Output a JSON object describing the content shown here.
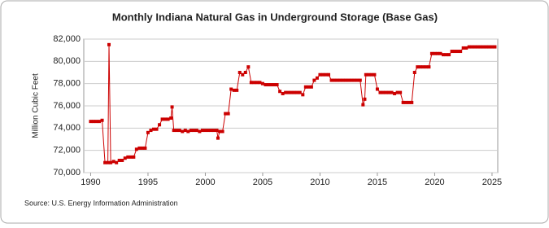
{
  "chart_data": {
    "type": "line",
    "title": "Monthly Indiana Natural Gas in Underground Storage (Base Gas)",
    "y_label": "Million Cubic Feet",
    "source": "Source: U.S. Energy Information Administration",
    "x": [
      1990.0,
      1990.25,
      1990.5,
      1990.75,
      1991.0,
      1991.25,
      1991.5,
      1991.6,
      1991.75,
      1992.0,
      1992.25,
      1992.5,
      1992.75,
      1993.0,
      1993.25,
      1993.5,
      1993.75,
      1994.0,
      1994.25,
      1994.5,
      1994.75,
      1995.0,
      1995.25,
      1995.5,
      1995.75,
      1996.0,
      1996.25,
      1996.5,
      1996.75,
      1997.0,
      1997.1,
      1997.25,
      1997.5,
      1997.75,
      1998.0,
      1998.25,
      1998.5,
      1998.75,
      1999.0,
      1999.25,
      1999.5,
      1999.75,
      2000.0,
      2000.25,
      2000.5,
      2000.75,
      2001.0,
      2001.1,
      2001.25,
      2001.5,
      2001.75,
      2002.0,
      2002.25,
      2002.5,
      2002.75,
      2003.0,
      2003.25,
      2003.5,
      2003.75,
      2004.0,
      2004.25,
      2004.5,
      2004.75,
      2005.0,
      2005.25,
      2005.5,
      2005.75,
      2006.0,
      2006.25,
      2006.5,
      2006.75,
      2007.0,
      2007.25,
      2007.5,
      2007.75,
      2008.0,
      2008.25,
      2008.5,
      2008.75,
      2009.0,
      2009.25,
      2009.5,
      2009.75,
      2010.0,
      2010.25,
      2010.5,
      2010.75,
      2011.0,
      2011.25,
      2011.5,
      2011.75,
      2012.0,
      2012.25,
      2012.5,
      2012.75,
      2013.0,
      2013.25,
      2013.5,
      2013.75,
      2013.9,
      2014.0,
      2014.25,
      2014.5,
      2014.75,
      2015.0,
      2015.25,
      2015.5,
      2015.75,
      2016.0,
      2016.25,
      2016.5,
      2016.75,
      2017.0,
      2017.25,
      2017.5,
      2017.75,
      2018.0,
      2018.25,
      2018.5,
      2018.75,
      2019.0,
      2019.25,
      2019.5,
      2019.75,
      2020.0,
      2020.25,
      2020.5,
      2020.75,
      2021.0,
      2021.25,
      2021.5,
      2021.75,
      2022.0,
      2022.25,
      2022.5,
      2022.75,
      2023.0,
      2023.25,
      2023.5,
      2023.75,
      2024.0,
      2024.25,
      2024.5,
      2024.75,
      2025.0,
      2025.25
    ],
    "series": [
      {
        "name": "Base Gas",
        "color": "#cc0000",
        "values": [
          74600,
          74600,
          74600,
          74600,
          74700,
          70900,
          70900,
          81500,
          70900,
          71000,
          70900,
          71100,
          71100,
          71300,
          71400,
          71400,
          71400,
          72100,
          72200,
          72200,
          72200,
          73600,
          73800,
          73900,
          73900,
          74300,
          74800,
          74800,
          74800,
          74900,
          75900,
          73800,
          73800,
          73800,
          73700,
          73800,
          73700,
          73800,
          73800,
          73800,
          73700,
          73800,
          73800,
          73800,
          73800,
          73800,
          73800,
          73100,
          73700,
          73700,
          75300,
          75300,
          77500,
          77400,
          77400,
          79000,
          78800,
          79000,
          79500,
          78100,
          78100,
          78100,
          78100,
          78000,
          77900,
          77900,
          77900,
          77900,
          77900,
          77300,
          77100,
          77200,
          77200,
          77200,
          77200,
          77200,
          77200,
          77000,
          77700,
          77700,
          77700,
          78300,
          78500,
          78800,
          78800,
          78800,
          78800,
          78300,
          78300,
          78300,
          78300,
          78300,
          78300,
          78300,
          78300,
          78300,
          78300,
          78300,
          76100,
          76600,
          78800,
          78800,
          78800,
          78800,
          77500,
          77200,
          77200,
          77200,
          77200,
          77200,
          77100,
          77200,
          77200,
          76300,
          76300,
          76300,
          76300,
          79000,
          79500,
          79500,
          79500,
          79500,
          79500,
          80700,
          80700,
          80700,
          80700,
          80600,
          80600,
          80600,
          80900,
          80900,
          80900,
          80900,
          81200,
          81200,
          81300,
          81300,
          81300,
          81300,
          81300,
          81300,
          81300,
          81300,
          81300,
          81300
        ]
      }
    ],
    "xlim": [
      1989.4,
      2025.5
    ],
    "xticks": [
      1990,
      1995,
      2000,
      2005,
      2010,
      2015,
      2020,
      2025
    ],
    "ylim": [
      70000,
      82000
    ],
    "yticks": [
      {
        "value": 70000,
        "label": "70,000"
      },
      {
        "value": 72000,
        "label": "72,000"
      },
      {
        "value": 74000,
        "label": "74,000"
      },
      {
        "value": 76000,
        "label": "76,000"
      },
      {
        "value": 78000,
        "label": "78,000"
      },
      {
        "value": 80000,
        "label": "80,000"
      },
      {
        "value": 82000,
        "label": "82,000"
      }
    ],
    "grid": true
  }
}
